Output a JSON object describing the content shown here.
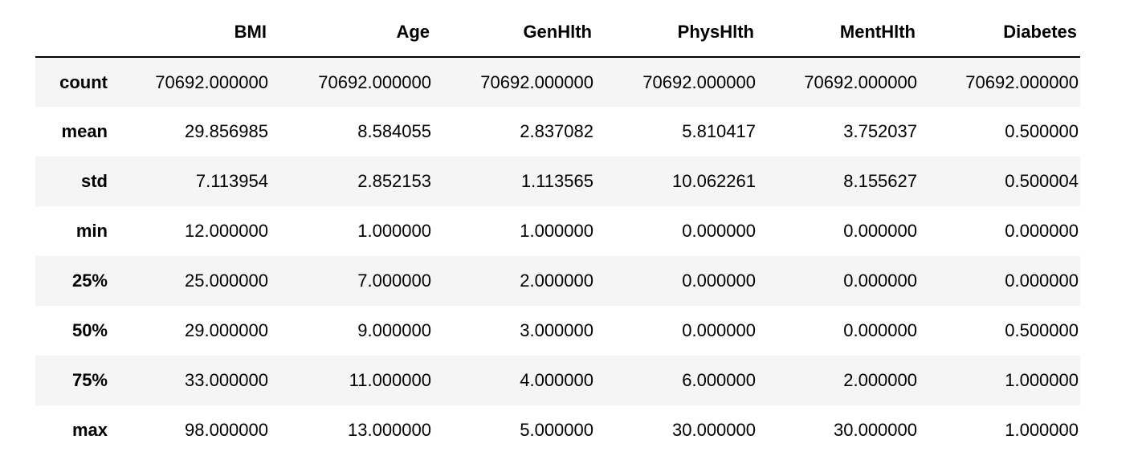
{
  "table": {
    "index_header": "",
    "columns": [
      "BMI",
      "Age",
      "GenHlth",
      "PhysHlth",
      "MentHlth",
      "Diabetes"
    ],
    "rows": [
      {
        "label": "count",
        "values": [
          "70692.000000",
          "70692.000000",
          "70692.000000",
          "70692.000000",
          "70692.000000",
          "70692.000000"
        ]
      },
      {
        "label": "mean",
        "values": [
          "29.856985",
          "8.584055",
          "2.837082",
          "5.810417",
          "3.752037",
          "0.500000"
        ]
      },
      {
        "label": "std",
        "values": [
          "7.113954",
          "2.852153",
          "1.113565",
          "10.062261",
          "8.155627",
          "0.500004"
        ]
      },
      {
        "label": "min",
        "values": [
          "12.000000",
          "1.000000",
          "1.000000",
          "0.000000",
          "0.000000",
          "0.000000"
        ]
      },
      {
        "label": "25%",
        "values": [
          "25.000000",
          "7.000000",
          "2.000000",
          "0.000000",
          "0.000000",
          "0.000000"
        ]
      },
      {
        "label": "50%",
        "values": [
          "29.000000",
          "9.000000",
          "3.000000",
          "0.000000",
          "0.000000",
          "0.500000"
        ]
      },
      {
        "label": "75%",
        "values": [
          "33.000000",
          "11.000000",
          "4.000000",
          "6.000000",
          "2.000000",
          "1.000000"
        ]
      },
      {
        "label": "max",
        "values": [
          "98.000000",
          "13.000000",
          "5.000000",
          "30.000000",
          "30.000000",
          "1.000000"
        ]
      }
    ]
  },
  "colors": {
    "stripe": "#f5f5f5",
    "background": "#ffffff",
    "header_rule": "#000000"
  }
}
